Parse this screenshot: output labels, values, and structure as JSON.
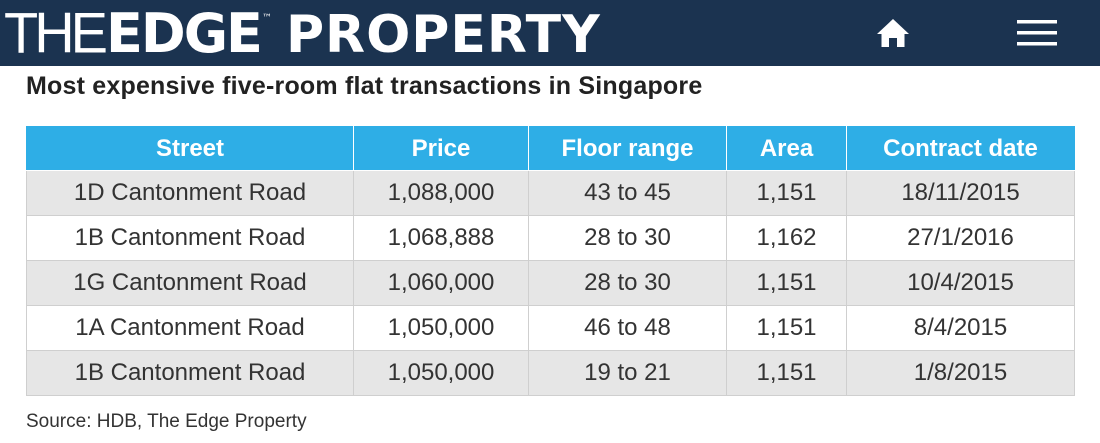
{
  "header": {
    "logo": {
      "part1": "THE",
      "part2": "EDGE",
      "tm": "™",
      "part3": "PROPERTY"
    },
    "home_icon": "home-icon",
    "menu_icon": "hamburger-menu-icon",
    "bg_color": "#1b3350"
  },
  "title": "Most expensive five-room flat transactions in Singapore",
  "table": {
    "header_color": "#2eaee6",
    "columns": [
      "Street",
      "Price",
      "Floor range",
      "Area",
      "Contract date"
    ],
    "rows": [
      [
        "1D Cantonment Road",
        "1,088,000",
        "43 to 45",
        "1,151",
        "18/11/2015"
      ],
      [
        "1B Cantonment Road",
        "1,068,888",
        "28 to 30",
        "1,162",
        "27/1/2016"
      ],
      [
        "1G Cantonment Road",
        "1,060,000",
        "28 to 30",
        "1,151",
        "10/4/2015"
      ],
      [
        "1A Cantonment Road",
        "1,050,000",
        "46 to 48",
        "1,151",
        "8/4/2015"
      ],
      [
        "1B Cantonment Road",
        "1,050,000",
        "19 to 21",
        "1,151",
        "1/8/2015"
      ]
    ]
  },
  "source": "Source: HDB, The Edge Property"
}
